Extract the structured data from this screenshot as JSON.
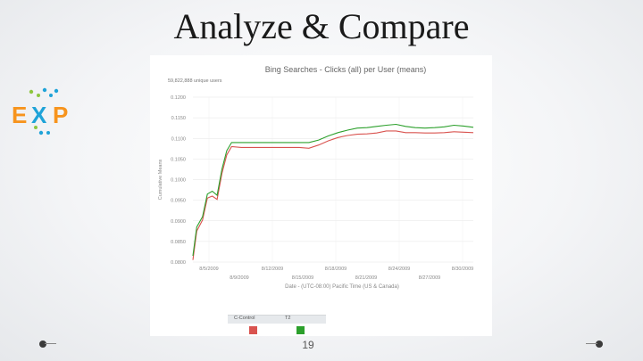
{
  "slide": {
    "title": "Analyze & Compare",
    "page_number": "19"
  },
  "logo": {
    "text": "EXP"
  },
  "chart_data": {
    "type": "line",
    "title": "Bing Searches - Clicks (all) per User (means)",
    "users_label": "59,822,888 unique users",
    "xlabel": "Date - (UTC-08:00) Pacific Time (US & Canada)",
    "ylabel": "Cumulative Means",
    "ylim": [
      0.08,
      0.12
    ],
    "y_ticks": [
      0.08,
      0.085,
      0.09,
      0.095,
      0.1,
      0.105,
      0.11,
      0.115,
      0.12
    ],
    "y_tick_labels": [
      "0.0800",
      "0.0850",
      "0.0900",
      "0.0950",
      "0.1000",
      "0.1050",
      "0.1100",
      "0.1150",
      "0.1200"
    ],
    "x_ticks_upper": [
      "8/5/2009",
      "8/12/2009",
      "8/18/2009",
      "8/24/2009",
      "8/30/2009"
    ],
    "x_ticks_lower": [
      "8/9/2009",
      "8/15/2009",
      "8/21/2009",
      "8/27/2009"
    ],
    "x": [
      0,
      0.4,
      1.0,
      1.5,
      2.0,
      2.5,
      3.0,
      3.5,
      4,
      5,
      6,
      7,
      8,
      9,
      10,
      11,
      12,
      13,
      14,
      15,
      16,
      17,
      18,
      19,
      20,
      21,
      22,
      23,
      24,
      25,
      26,
      27,
      28,
      29
    ],
    "series": [
      {
        "name": "C-Control",
        "color": "#d9534f",
        "values": [
          0.0805,
          0.0875,
          0.0902,
          0.0955,
          0.096,
          0.0952,
          0.1015,
          0.106,
          0.108,
          0.1078,
          0.1078,
          0.1078,
          0.1078,
          0.1078,
          0.1078,
          0.1078,
          0.1076,
          0.1084,
          0.1094,
          0.1102,
          0.1107,
          0.111,
          0.1111,
          0.1113,
          0.1118,
          0.1118,
          0.1114,
          0.1114,
          0.1113,
          0.1113,
          0.1114,
          0.1116,
          0.1115,
          0.1114
        ]
      },
      {
        "name": "T2",
        "color": "#2ca02c",
        "values": [
          0.0815,
          0.0885,
          0.091,
          0.0965,
          0.0972,
          0.0962,
          0.1025,
          0.107,
          0.109,
          0.109,
          0.109,
          0.109,
          0.109,
          0.109,
          0.109,
          0.109,
          0.109,
          0.1096,
          0.1106,
          0.1114,
          0.112,
          0.1125,
          0.1126,
          0.1129,
          0.1132,
          0.1134,
          0.1129,
          0.1126,
          0.1125,
          0.1126,
          0.1128,
          0.1132,
          0.113,
          0.1127
        ]
      }
    ],
    "legend": [
      "C-Control",
      "T2"
    ],
    "grid": true
  }
}
